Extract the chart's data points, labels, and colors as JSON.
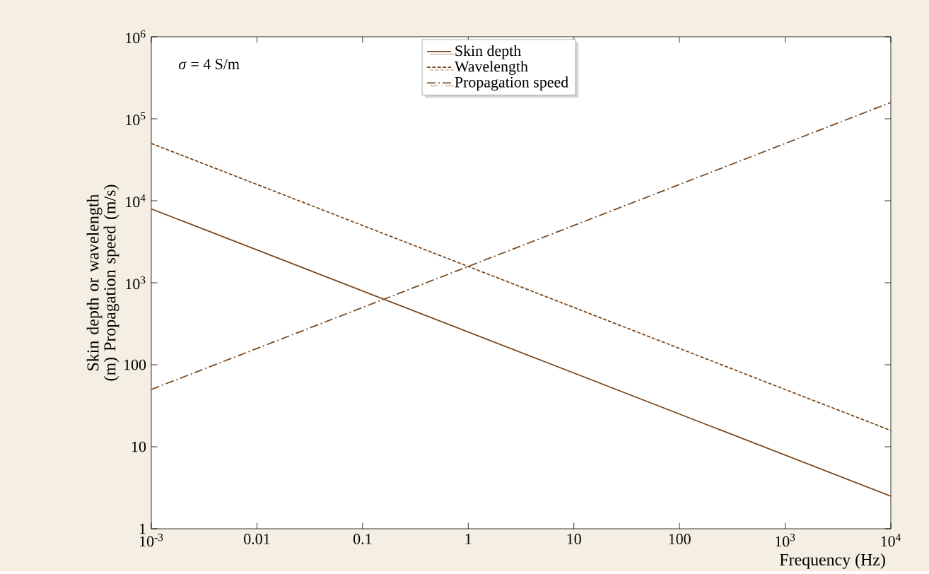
{
  "chart_data": {
    "type": "line",
    "xlabel": "Frequency (Hz)",
    "ylabel": "Skin depth or wavelength (m) Propagation speed (m/s)",
    "annotations": [
      "*σ* = 4 S/m"
    ],
    "log": "xy",
    "xlim": [
      0.001,
      10000
    ],
    "ylim": [
      1,
      1000000
    ],
    "xticks": [
      {
        "value": 0.001,
        "label": "10$^{-3}$"
      },
      0.01,
      0.1,
      1,
      10,
      100,
      {
        "value": 1000,
        "label": "10$^{3}$"
      },
      {
        "value": 10000,
        "label": "10$^{4}$"
      }
    ],
    "yticks": [
      1,
      10,
      100,
      {
        "value": 1000,
        "label": "10$^{3}$"
      },
      {
        "value": 10000,
        "label": "10$^{4}$"
      },
      {
        "value": 100000,
        "label": "10$^{5}$"
      },
      {
        "value": 1000000,
        "label": "10$^{6}$"
      }
    ],
    "x": [
      0.001,
      10000
    ],
    "legend": "top",
    "grid": false,
    "marker": "none",
    "series": [
      {
        "name": "Skin depth",
        "color": "#7b4a1f",
        "line_style": "solid",
        "values": [
          7958,
          2.5
        ]
      },
      {
        "name": "Wavelength",
        "color": "#7b4a1f",
        "line_style": "dashed",
        "values": [
          50000,
          15.8
        ]
      },
      {
        "name": "Propagation speed",
        "color": "#7b4a1f",
        "line_style": "dashdot",
        "values": [
          50,
          158000
        ]
      }
    ]
  }
}
